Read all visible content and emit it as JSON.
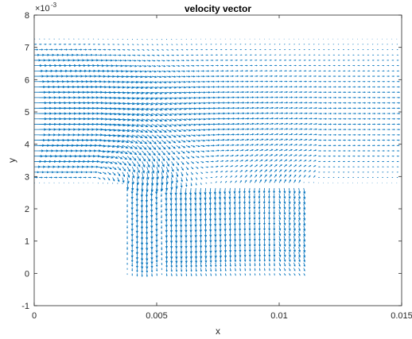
{
  "chart_data": {
    "type": "quiver",
    "title": "velocity vector",
    "xlabel": "x",
    "ylabel": "y",
    "xlim": [
      0,
      0.015
    ],
    "ylim": [
      -1,
      8
    ],
    "y_scale_label": "×10",
    "y_scale_exponent": "-3",
    "x_ticks": [
      "0",
      "0.005",
      "0.01",
      "0.015"
    ],
    "x_tick_values": [
      0,
      0.005,
      0.01,
      0.015
    ],
    "y_ticks": [
      "-1",
      "0",
      "1",
      "2",
      "3",
      "4",
      "5",
      "6",
      "7",
      "8"
    ],
    "y_tick_values": [
      -1,
      0,
      1,
      2,
      3,
      4,
      5,
      6,
      7,
      8
    ],
    "grid": false,
    "arrow_color": "#0072BD",
    "box": true,
    "grid_x": {
      "start": 0,
      "step": 0.0002,
      "count": 75
    },
    "grid_y": {
      "start": 0,
      "step": 0.000165,
      "count": 45
    },
    "channel_region": {
      "x": [
        0,
        0.0148
      ],
      "y": [
        0.00265,
        0.0073
      ]
    },
    "cavity_region": {
      "x": [
        0.0038,
        0.011
      ],
      "y": [
        0,
        0.00265
      ]
    }
  }
}
